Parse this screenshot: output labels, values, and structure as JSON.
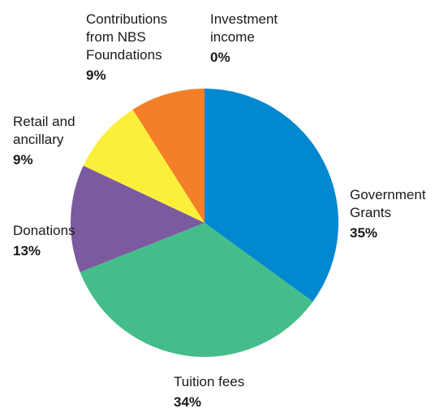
{
  "chart_data": {
    "type": "pie",
    "slices": [
      {
        "label": "Government Grants",
        "label_display": "Government\nGrants",
        "value": 35,
        "value_label": "35%",
        "color": "#0288cf"
      },
      {
        "label": "Tuition fees",
        "label_display": "Tuition fees",
        "value": 34,
        "value_label": "34%",
        "color": "#44bd8a"
      },
      {
        "label": "Donations",
        "label_display": "Donations",
        "value": 13,
        "value_label": "13%",
        "color": "#7b5aa0"
      },
      {
        "label": "Retail and ancillary",
        "label_display": "Retail and\nancillary",
        "value": 9,
        "value_label": "9%",
        "color": "#fbef3b"
      },
      {
        "label": "Contributions from NBS Foundations",
        "label_display": "Contributions\nfrom NBS\nFoundations",
        "value": 9,
        "value_label": "9%",
        "color": "#f47f28"
      },
      {
        "label": "Investment income",
        "label_display": "Investment\nincome",
        "value": 0,
        "value_label": "0%",
        "color": "#9e9e9e"
      }
    ],
    "start": "12 o'clock",
    "direction": "clockwise"
  }
}
